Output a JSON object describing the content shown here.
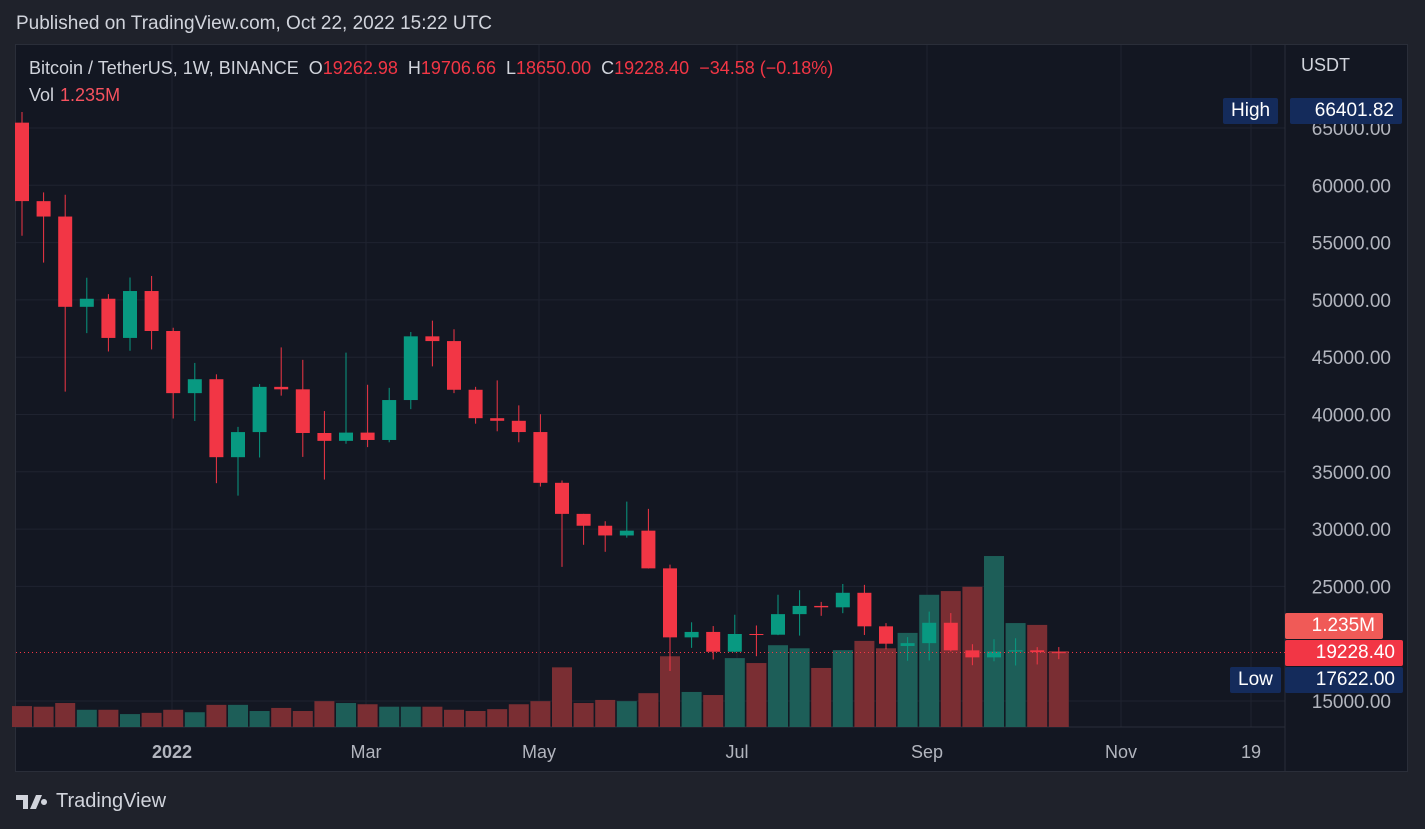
{
  "header": {
    "published": "Published on TradingView.com, Oct 22, 2022 15:22 UTC"
  },
  "legend": {
    "symbol": "Bitcoin / TetherUS, 1W, BINANCE",
    "o_label": "O",
    "o": "19262.98",
    "h_label": "H",
    "h": "19706.66",
    "l_label": "L",
    "l": "18650.00",
    "c_label": "C",
    "c": "19228.40",
    "change": "−34.58 (−0.18%)",
    "vol_label": "Vol",
    "vol": "1.235M"
  },
  "price_axis": {
    "unit": "USDT",
    "ticks": [
      "65000.00",
      "60000.00",
      "55000.00",
      "50000.00",
      "45000.00",
      "40000.00",
      "35000.00",
      "30000.00",
      "25000.00",
      "15000.00"
    ],
    "high_label": "High",
    "high_value": "66401.82",
    "low_label": "Low",
    "low_value": "17622.00",
    "last_price": "19228.40",
    "last_volume": "1.235M"
  },
  "time_axis": {
    "ticks": [
      "2022",
      "Mar",
      "May",
      "Jul",
      "Sep",
      "Nov",
      "19"
    ]
  },
  "brand": {
    "name": "TradingView"
  },
  "colors": {
    "up": "#089981",
    "down": "#f23645",
    "background": "#131722",
    "high_low_tag": "#142b5b"
  },
  "chart_data": {
    "type": "candlestick",
    "interval": "1W",
    "ylim": [
      13000,
      70000
    ],
    "price_ticks": [
      15000,
      25000,
      30000,
      35000,
      40000,
      45000,
      50000,
      55000,
      60000,
      65000
    ],
    "x": [
      "2021-11-15",
      "2021-11-22",
      "2021-11-29",
      "2021-12-06",
      "2021-12-13",
      "2021-12-20",
      "2021-12-27",
      "2022-01-03",
      "2022-01-10",
      "2022-01-17",
      "2022-01-24",
      "2022-01-31",
      "2022-02-07",
      "2022-02-14",
      "2022-02-21",
      "2022-02-28",
      "2022-03-07",
      "2022-03-14",
      "2022-03-21",
      "2022-03-28",
      "2022-04-04",
      "2022-04-11",
      "2022-04-18",
      "2022-04-25",
      "2022-05-02",
      "2022-05-09",
      "2022-05-16",
      "2022-05-23",
      "2022-05-30",
      "2022-06-06",
      "2022-06-13",
      "2022-06-20",
      "2022-06-27",
      "2022-07-04",
      "2022-07-11",
      "2022-07-18",
      "2022-07-25",
      "2022-08-01",
      "2022-08-08",
      "2022-08-15",
      "2022-08-22",
      "2022-08-29",
      "2022-09-05",
      "2022-09-12",
      "2022-09-19",
      "2022-09-26",
      "2022-10-03",
      "2022-10-10",
      "2022-10-17"
    ],
    "ohlc": [
      [
        65466,
        66401,
        55600,
        58622
      ],
      [
        58617,
        59380,
        53256,
        57274
      ],
      [
        57274,
        59176,
        42000,
        49396
      ],
      [
        49396,
        51936,
        47100,
        50100
      ],
      [
        50100,
        50500,
        45500,
        46681
      ],
      [
        46681,
        51956,
        45558,
        50775
      ],
      [
        50775,
        52088,
        45678,
        47286
      ],
      [
        47286,
        47570,
        39650,
        41864
      ],
      [
        41864,
        44500,
        39430,
        43079
      ],
      [
        43079,
        43505,
        34008,
        36276
      ],
      [
        36276,
        38919,
        32917,
        38466
      ],
      [
        38466,
        42656,
        36250,
        42412
      ],
      [
        42412,
        45855,
        41645,
        42197
      ],
      [
        42197,
        44769,
        36300,
        38386
      ],
      [
        38386,
        40300,
        34322,
        37699
      ],
      [
        37699,
        45400,
        37450,
        38420
      ],
      [
        38420,
        42594,
        37155,
        37777
      ],
      [
        37777,
        42325,
        37578,
        41262
      ],
      [
        41262,
        47200,
        40467,
        46820
      ],
      [
        46820,
        48189,
        44200,
        46407
      ],
      [
        46407,
        47443,
        41868,
        42158
      ],
      [
        42158,
        42414,
        39200,
        39678
      ],
      [
        39678,
        42976,
        38536,
        39450
      ],
      [
        39450,
        40797,
        37578,
        38469
      ],
      [
        38469,
        40023,
        33713,
        34038
      ],
      [
        34038,
        34243,
        26700,
        31328
      ],
      [
        31328,
        31328,
        28630,
        30293
      ],
      [
        30293,
        30687,
        28019,
        29445
      ],
      [
        29445,
        32399,
        29250,
        29864
      ],
      [
        29864,
        31765,
        26560,
        26574
      ],
      [
        26574,
        26895,
        17622,
        20553
      ],
      [
        20553,
        21868,
        19637,
        21027
      ],
      [
        21027,
        21539,
        18626,
        19298
      ],
      [
        19298,
        22527,
        19240,
        20847
      ],
      [
        20847,
        21590,
        18910,
        20785
      ],
      [
        20785,
        24276,
        20743,
        22580
      ],
      [
        22580,
        24668,
        20706,
        23296
      ],
      [
        23296,
        23647,
        22432,
        23175
      ],
      [
        23175,
        25211,
        22664,
        24442
      ],
      [
        24442,
        25135,
        20761,
        21515
      ],
      [
        21515,
        21800,
        19520,
        20000
      ],
      [
        19800,
        20577,
        18510,
        20050
      ],
      [
        20050,
        22800,
        18540,
        21826
      ],
      [
        21826,
        22673,
        19320,
        19420
      ],
      [
        19420,
        19956,
        18125,
        18807
      ],
      [
        18807,
        20385,
        18471,
        19311
      ],
      [
        19311,
        20475,
        18100,
        19422
      ],
      [
        19422,
        19700,
        18190,
        19262.98
      ],
      [
        19262.98,
        19706.66,
        18650,
        19228.4
      ]
    ],
    "volume_millions": [
      0.34,
      0.33,
      0.39,
      0.28,
      0.28,
      0.21,
      0.23,
      0.28,
      0.24,
      0.36,
      0.36,
      0.26,
      0.31,
      0.26,
      0.42,
      0.39,
      0.37,
      0.33,
      0.33,
      0.33,
      0.28,
      0.26,
      0.29,
      0.37,
      0.42,
      0.97,
      0.39,
      0.44,
      0.42,
      0.55,
      1.15,
      0.57,
      0.52,
      1.12,
      1.04,
      1.33,
      1.28,
      0.96,
      1.25,
      1.4,
      1.28,
      1.53,
      2.15,
      2.21,
      2.28,
      2.78,
      1.69,
      1.66,
      1.235
    ]
  }
}
